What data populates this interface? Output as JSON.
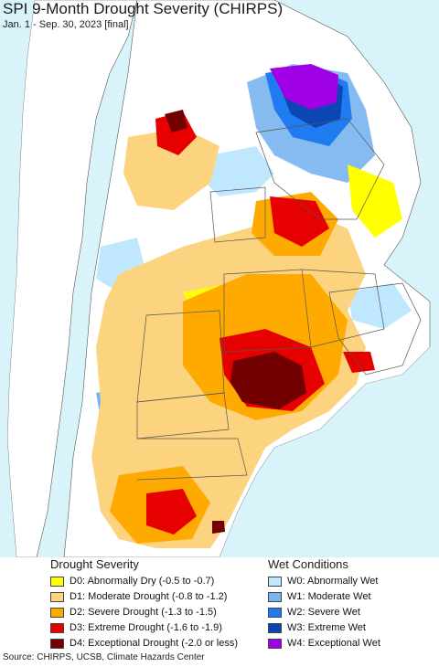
{
  "title": "SPI 9-Month Drought Severity (CHIRPS)",
  "subtitle": "Jan. 1 - Sep. 30, 2023 [final]",
  "legend": {
    "drought_heading": "Drought Severity",
    "wet_heading": "Wet Conditions",
    "drought": [
      {
        "label": "D0: Abnormally Dry (-0.5 to -0.7)",
        "color": "#ffff00"
      },
      {
        "label": "D1: Moderate Drought (-0.8 to -1.2)",
        "color": "#fcd37f"
      },
      {
        "label": "D2: Severe Drought (-1.3 to -1.5)",
        "color": "#ffaa00"
      },
      {
        "label": "D3: Extreme Drought (-1.6 to -1.9)",
        "color": "#e60000"
      },
      {
        "label": "D4: Exceptional Drought (-2.0 or less)",
        "color": "#730000"
      }
    ],
    "wet": [
      {
        "label": "W0: Abnormally Wet",
        "color": "#bfe8ff"
      },
      {
        "label": "W1: Moderate Wet",
        "color": "#78b4f0"
      },
      {
        "label": "W2: Severe Wet",
        "color": "#1e7cf0"
      },
      {
        "label": "W3: Extreme Wet",
        "color": "#0a46b4"
      },
      {
        "label": "W4: Exceptional Wet",
        "color": "#a000e6"
      }
    ]
  },
  "source": "Source: CHIRPS, UCSB, Climate Hazards Center",
  "colors": {
    "ocean": "#d9f3fb",
    "land_outside": "#ffffff",
    "analysis_land": "#ffffff",
    "border": "#555555"
  }
}
